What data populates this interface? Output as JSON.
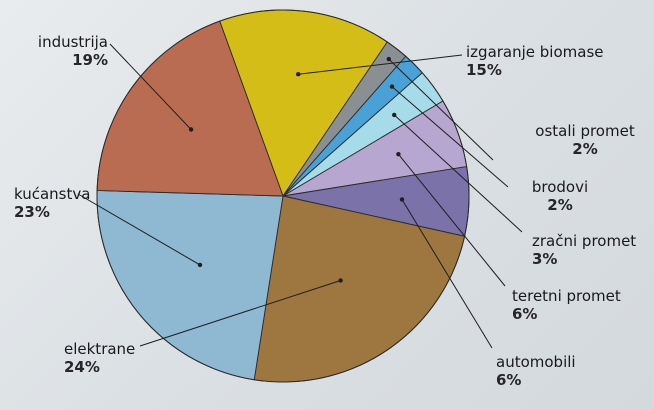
{
  "chart_data": {
    "type": "pie",
    "slices": [
      {
        "label": "izgaranje biomase",
        "value_text": "15%",
        "value": 15,
        "color": "#d4bd17"
      },
      {
        "label": "ostali promet",
        "value_text": "2%",
        "value": 2,
        "color": "#8a8f93"
      },
      {
        "label": "brodovi",
        "value_text": "2%",
        "value": 2,
        "color": "#4aa1d6"
      },
      {
        "label": "zračni promet",
        "value_text": "3%",
        "value": 3,
        "color": "#a6dbe9"
      },
      {
        "label": "teretni promet",
        "value_text": "6%",
        "value": 6,
        "color": "#b7a6cf"
      },
      {
        "label": "automobili",
        "value_text": "6%",
        "value": 6,
        "color": "#7a72a9"
      },
      {
        "label": "elektrane",
        "value_text": "24%",
        "value": 24,
        "color": "#9e7740"
      },
      {
        "label": "kućanstva",
        "value_text": "23%",
        "value": 23,
        "color": "#8fb8d2"
      },
      {
        "label": "industrija",
        "value_text": "19%",
        "value": 19,
        "color": "#b96c52"
      }
    ]
  }
}
